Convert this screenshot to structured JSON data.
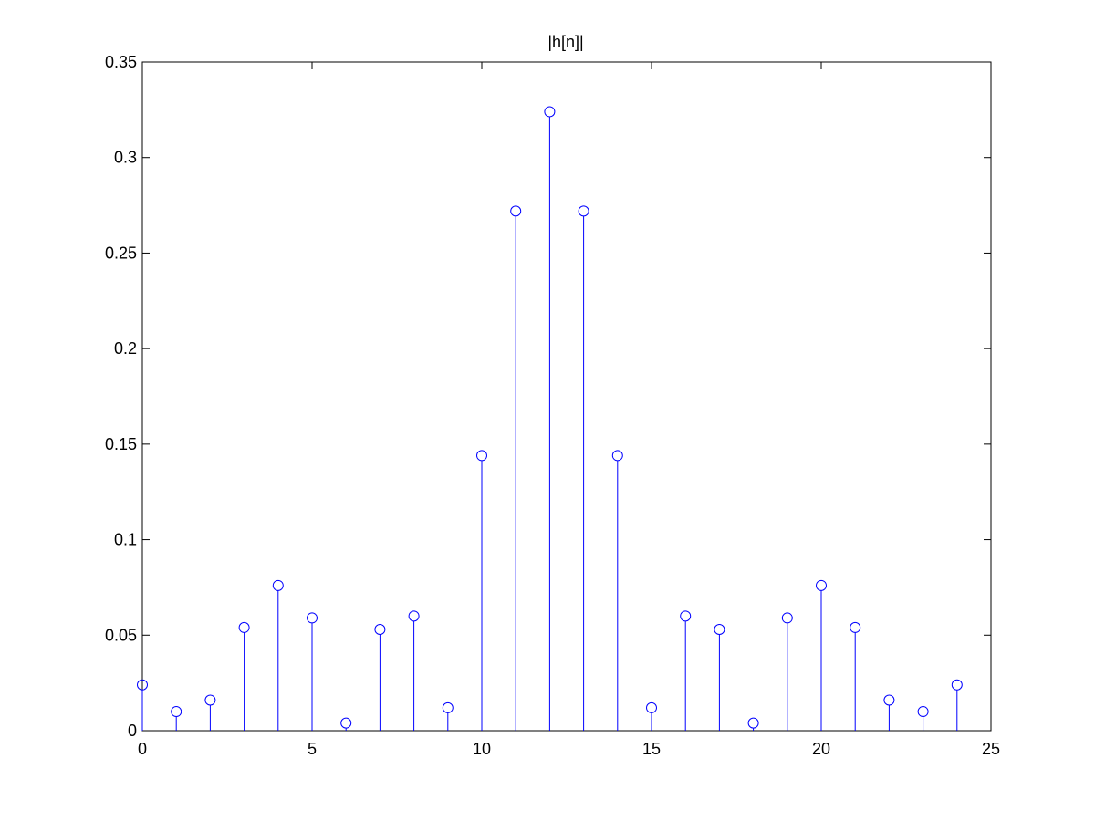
{
  "chart_data": {
    "type": "stem",
    "title": "|h[n]|",
    "xlabel": "",
    "ylabel": "",
    "xlim": [
      0,
      25
    ],
    "ylim": [
      0,
      0.35
    ],
    "xticks": [
      0,
      5,
      10,
      15,
      20,
      25
    ],
    "xtick_labels": [
      "0",
      "5",
      "10",
      "15",
      "20",
      "25"
    ],
    "yticks": [
      0,
      0.05,
      0.1,
      0.15,
      0.2,
      0.25,
      0.3,
      0.35
    ],
    "ytick_labels": [
      "0",
      "0.05",
      "0.1",
      "0.15",
      "0.2",
      "0.25",
      "0.3",
      "0.35"
    ],
    "grid": false,
    "marker": "circle",
    "color": "#0000ff",
    "series": [
      {
        "name": "|h[n]|",
        "x": [
          0,
          1,
          2,
          3,
          4,
          5,
          6,
          7,
          8,
          9,
          10,
          11,
          12,
          13,
          14,
          15,
          16,
          17,
          18,
          19,
          20,
          21,
          22,
          23,
          24
        ],
        "values": [
          0.024,
          0.01,
          0.016,
          0.054,
          0.076,
          0.059,
          0.004,
          0.053,
          0.06,
          0.012,
          0.144,
          0.272,
          0.324,
          0.272,
          0.144,
          0.012,
          0.06,
          0.053,
          0.004,
          0.059,
          0.076,
          0.054,
          0.016,
          0.01,
          0.024
        ]
      }
    ]
  }
}
